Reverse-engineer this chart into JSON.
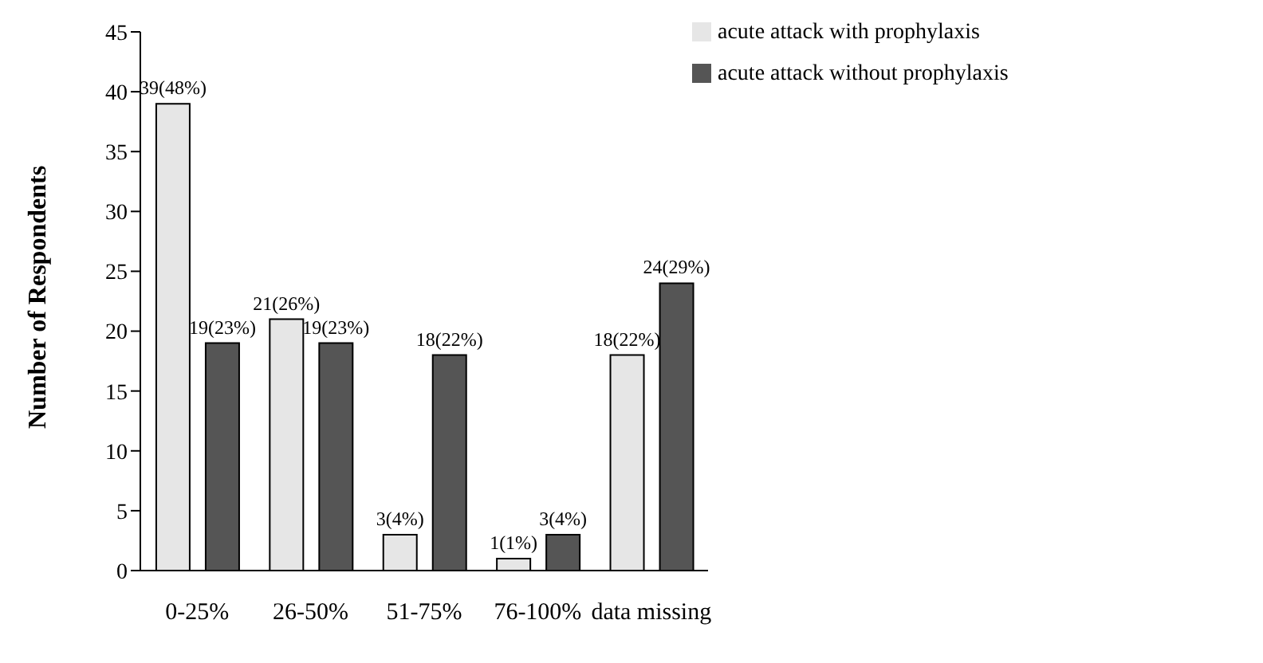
{
  "chart_data": {
    "type": "bar",
    "ylabel": "Number of Respondents",
    "categories": [
      "0-25%",
      "26-50%",
      "51-75%",
      "76-100%",
      "data missing"
    ],
    "series": [
      {
        "name": "acute attack with prophylaxis",
        "color": "#e6e6e6",
        "values": [
          39,
          21,
          3,
          1,
          18
        ],
        "value_labels": [
          "39(48%)",
          "21(26%)",
          "3(4%)",
          "1(1%)",
          "18(22%)"
        ]
      },
      {
        "name": "acute attack without prophylaxis",
        "color": "#555555",
        "values": [
          19,
          19,
          18,
          3,
          24
        ],
        "value_labels": [
          "19(23%)",
          "19(23%)",
          "18(22%)",
          "3(4%)",
          "24(29%)"
        ]
      }
    ],
    "ylim": [
      0,
      45
    ],
    "yticks": [
      0,
      5,
      10,
      15,
      20,
      25,
      30,
      35,
      40,
      45
    ],
    "grid": false,
    "legend": "top right"
  }
}
